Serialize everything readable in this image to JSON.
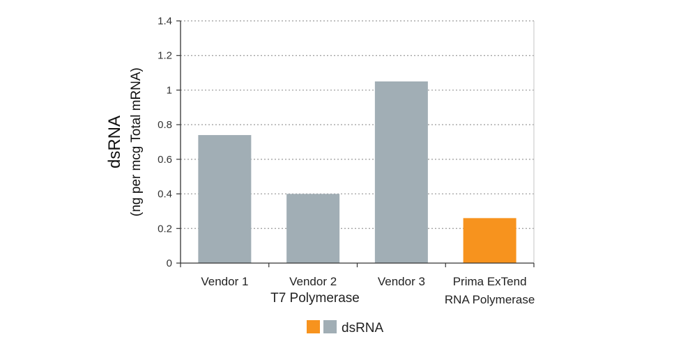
{
  "chart_data": {
    "type": "bar",
    "categories": [
      "Vendor 1",
      "Vendor 2",
      "Vendor 3",
      "Prima ExTend RNA Polymerase"
    ],
    "category_lines": [
      [
        "Vendor 1"
      ],
      [
        "Vendor 2"
      ],
      [
        "Vendor 3"
      ],
      [
        "Prima ExTend",
        "RNA Polymerase"
      ]
    ],
    "group_label": "T7 Polymerase",
    "series": [
      {
        "name": "dsRNA",
        "values": [
          0.74,
          0.4,
          1.05,
          0.26
        ]
      }
    ],
    "bar_colors": [
      "#a1aeb5",
      "#a1aeb5",
      "#a1aeb5",
      "#f7931e"
    ],
    "ylabel_main": "dsRNA",
    "ylabel_sub": "(ng per mcg Total mRNA)",
    "ylim": [
      0,
      1.4
    ],
    "yticks": [
      0,
      0.2,
      0.4,
      0.6,
      0.8,
      1,
      1.2,
      1.4
    ],
    "ytick_labels": [
      "0",
      "0.2",
      "0.4",
      "0.6",
      "0.8",
      "1",
      "1.2",
      "1.4"
    ],
    "grid": true,
    "legend": {
      "position": "bottom",
      "label": "dsRNA",
      "swatch_colors": [
        "#f7931e",
        "#a1aeb5"
      ]
    }
  }
}
